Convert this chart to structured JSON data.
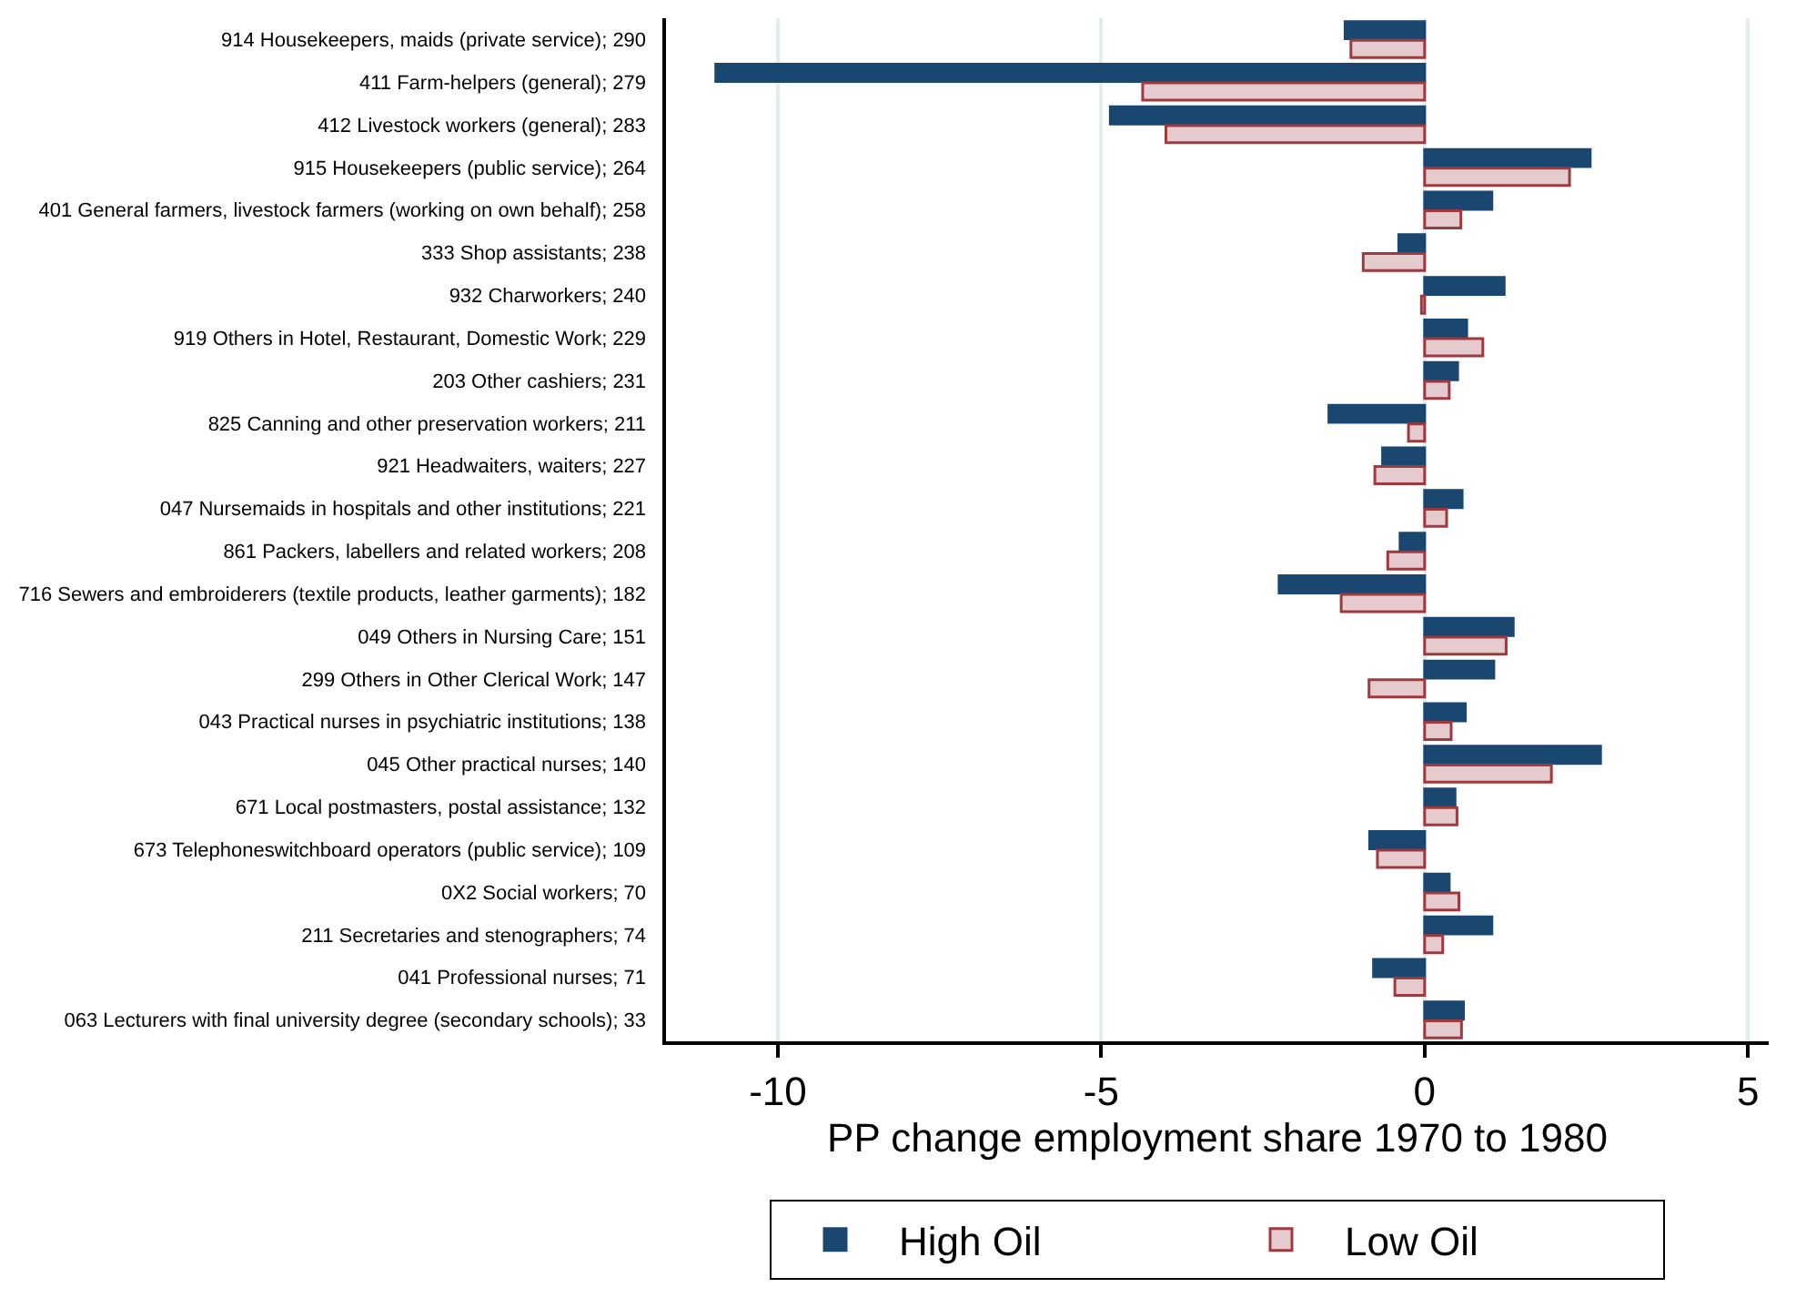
{
  "chart_data": {
    "type": "bar",
    "orientation": "horizontal",
    "xlabel": "PP change employment share 1970 to 1980",
    "categories": [
      "914 Housekeepers, maids (private service); 290",
      "411 Farm-helpers (general); 279",
      "412 Livestock workers (general); 283",
      "915 Housekeepers (public service); 264",
      "401 General farmers, livestock farmers (working on own behalf); 258",
      "333 Shop assistants; 238",
      "932 Charworkers; 240",
      "919 Others in Hotel, Restaurant, Domestic Work; 229",
      "203 Other cashiers; 231",
      "825 Canning and other preservation workers; 211",
      "921 Headwaiters, waiters; 227",
      "047 Nursemaids in hospitals and other institutions; 221",
      "861 Packers, labellers and related workers; 208",
      "716 Sewers and embroiderers (textile products, leather garments); 182",
      "049 Others in Nursing Care; 151",
      "299 Others in Other Clerical Work; 147",
      "043 Practical nurses in psychiatric institutions; 138",
      "045 Other practical nurses; 140",
      "671 Local postmasters, postal assistance; 132",
      "673 Telephoneswitchboard operators (public service); 109",
      "0X2 Social workers; 70",
      "211 Secretaries and stenographers; 74",
      "041 Professional nurses; 71",
      "063 Lecturers with final university degree (secondary schools); 33"
    ],
    "series": [
      {
        "name": "High Oil",
        "color": "#1a476f",
        "values": [
          -1.23,
          -10.96,
          -4.86,
          2.56,
          1.04,
          -0.4,
          1.23,
          0.65,
          0.51,
          -1.48,
          -0.65,
          0.58,
          -0.38,
          -2.25,
          1.37,
          1.07,
          0.63,
          2.72,
          0.47,
          -0.85,
          0.38,
          1.04,
          -0.79,
          0.6
        ]
      },
      {
        "name": "Low Oil",
        "color": "#e6cbce",
        "values": [
          -1.14,
          -4.36,
          -4.0,
          2.24,
          0.56,
          -0.95,
          -0.05,
          0.9,
          0.38,
          -0.25,
          -0.77,
          0.34,
          -0.57,
          -1.29,
          1.26,
          -0.86,
          0.41,
          1.96,
          0.5,
          -0.73,
          0.53,
          0.28,
          -0.46,
          0.57
        ]
      }
    ],
    "xlim": [
      -11.73,
      5.32
    ],
    "xticks": [
      -10,
      -5,
      0,
      5
    ],
    "grid": "x",
    "legend": "bottom"
  }
}
